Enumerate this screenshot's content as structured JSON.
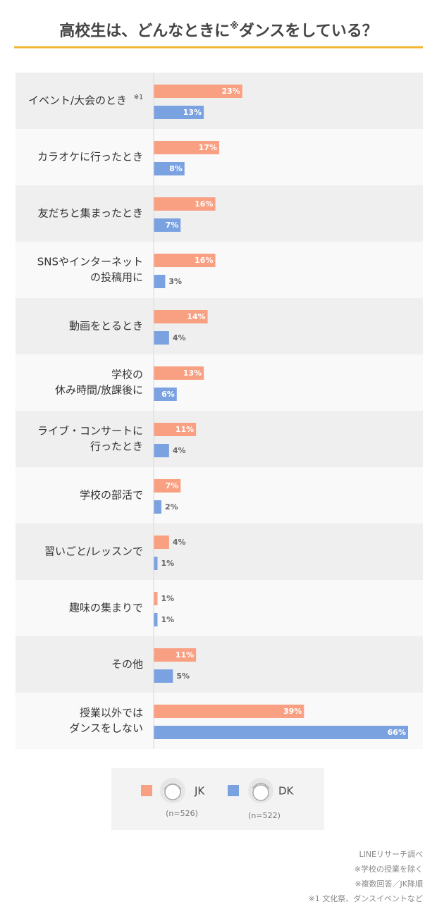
{
  "chart_data": {
    "type": "bar",
    "orientation": "horizontal",
    "title_parts": [
      "高校生は、どんなときに",
      "※",
      "ダンスをしている？"
    ],
    "categories": [
      [
        "イベント/大会のとき"
      ],
      [
        "カラオケに行ったとき"
      ],
      [
        "友だちと集まったとき"
      ],
      [
        "SNSやインターネット",
        "の投稿用に"
      ],
      [
        "動画をとるとき"
      ],
      [
        "学校の",
        "休み時間/放課後に"
      ],
      [
        "ライブ・コンサートに",
        "行ったとき"
      ],
      [
        "学校の部活で"
      ],
      [
        "習いごと/レッスンで"
      ],
      [
        "趣味の集まりで"
      ],
      [
        "その他"
      ],
      [
        "授業以外では",
        "ダンスをしない"
      ]
    ],
    "first_category_note": "※1",
    "series": [
      {
        "name": "JK",
        "sample": "(n=526)",
        "color": "#f9a083",
        "values": [
          23,
          17,
          16,
          16,
          14,
          13,
          11,
          7,
          4,
          1,
          11,
          39
        ],
        "value_labels": [
          "23%",
          "17%",
          "16%",
          "16%",
          "14%",
          "13%",
          "11%",
          "7%",
          "4%",
          "1%",
          "11%",
          "39%"
        ]
      },
      {
        "name": "DK",
        "sample": "(n=522)",
        "color": "#7ba2e0",
        "values": [
          13,
          8,
          7,
          3,
          4,
          6,
          4,
          2,
          1,
          1,
          5,
          66
        ],
        "value_labels": [
          "13%",
          "8%",
          "7%",
          "3%",
          "4%",
          "6%",
          "4%",
          "2%",
          "1%",
          "1%",
          "5%",
          "66%"
        ]
      }
    ],
    "xlim": [
      0,
      66
    ],
    "footnotes": [
      "LINEリサーチ調べ",
      "※学校の授業を除く",
      "※複数回答／JK降順",
      "※1 文化祭、ダンスイベントなど"
    ]
  }
}
